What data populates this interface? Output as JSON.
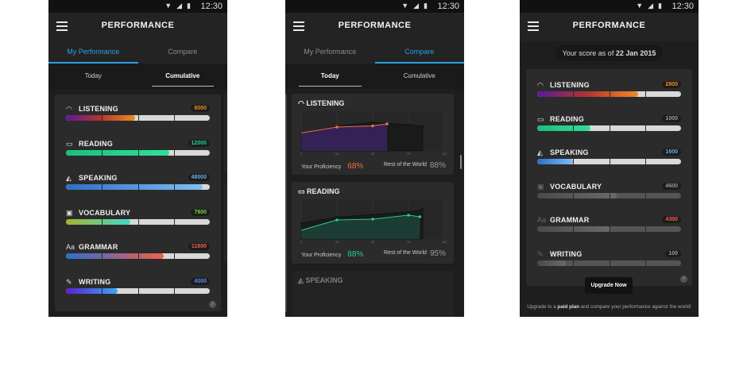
{
  "status_time": "12:30",
  "app_title": "PERFORMANCE",
  "tabs": [
    "My Performance",
    "Compare"
  ],
  "subtabs": [
    "Today",
    "Cumulative"
  ],
  "screen1": {
    "skills": [
      {
        "name": "LISTENING",
        "icon": "headphones-icon",
        "score": "8000",
        "score_color": "#f08a24",
        "progress": 0.48
      },
      {
        "name": "READING",
        "icon": "book-icon",
        "score": "12000",
        "score_color": "#1fd18a",
        "progress": 0.72
      },
      {
        "name": "SPEAKING",
        "icon": "megaphone-icon",
        "score": "48000",
        "score_color": "#5fb0f0",
        "progress": 0.95
      },
      {
        "name": "VOCABULARY",
        "icon": "flashcard-icon",
        "score": "7600",
        "score_color": "#7bd34a",
        "progress": 0.45
      },
      {
        "name": "GRAMMAR",
        "icon": "grammar-icon",
        "score": "11800",
        "score_color": "#f0604a",
        "progress": 0.68
      },
      {
        "name": "WRITING",
        "icon": "pen-icon",
        "score": "4000",
        "score_color": "#5a8cf0",
        "progress": 0.36
      }
    ]
  },
  "screen2": {
    "charts": [
      {
        "title": "LISTENING",
        "icon": "headphones-icon",
        "your_label": "Your Proficiency",
        "your_pct": "68%",
        "your_color": "#f07040",
        "rest_label": "Rest of the World",
        "rest_pct": "88%"
      },
      {
        "title": "READING",
        "icon": "book-icon",
        "your_label": "Your Proficiency",
        "your_pct": "88%",
        "your_color": "#1fd18a",
        "rest_label": "Rest of the World",
        "rest_pct": "95%"
      },
      {
        "title": "SPEAKING",
        "icon": "megaphone-icon"
      }
    ],
    "chart_data": [
      {
        "type": "area",
        "title": "LISTENING",
        "x": [
          0,
          25,
          50,
          75,
          100
        ],
        "x_tick_labels": [
          "0",
          "25",
          "50",
          "75",
          "100"
        ],
        "series": [
          {
            "name": "Your Proficiency",
            "x": [
              0,
              25,
              50,
              60
            ],
            "values": [
              0.45,
              0.6,
              0.63,
              0.68
            ]
          },
          {
            "name": "Rest of the World",
            "x": [
              0,
              25,
              50,
              75,
              85
            ],
            "values": [
              0.45,
              0.62,
              0.72,
              0.66,
              0.62
            ]
          }
        ]
      },
      {
        "type": "area",
        "title": "READING",
        "x": [
          0,
          25,
          50,
          75,
          100
        ],
        "x_tick_labels": [
          "0",
          "25",
          "50",
          "75",
          "100"
        ],
        "series": [
          {
            "name": "Your Proficiency",
            "x": [
              0,
              25,
              50,
              75,
              83
            ],
            "values": [
              0.22,
              0.48,
              0.5,
              0.6,
              0.56
            ]
          },
          {
            "name": "Rest of the World",
            "x": [
              0,
              25,
              50,
              75,
              85
            ],
            "values": [
              0.4,
              0.55,
              0.62,
              0.68,
              0.75
            ]
          }
        ]
      }
    ]
  },
  "screen3": {
    "score_prefix": "Your score as of ",
    "score_date": "22 Jan 2015",
    "skills": [
      {
        "name": "LISTENING",
        "icon": "headphones-icon",
        "score": "2800",
        "score_color": "#f08a24",
        "progress": 0.7,
        "active": true
      },
      {
        "name": "READING",
        "icon": "book-icon",
        "score": "1000",
        "score_color": "#9a9a9a",
        "progress": 0.37,
        "active": true
      },
      {
        "name": "SPEAKING",
        "icon": "megaphone-icon",
        "score": "1600",
        "score_color": "#5fb0f0",
        "progress": 0.25,
        "active": true
      },
      {
        "name": "VOCABULARY",
        "icon": "flashcard-icon",
        "score": "4600",
        "score_color": "#9a9a9a",
        "progress": 0.55,
        "active": false
      },
      {
        "name": "GRAMMAR",
        "icon": "grammar-icon",
        "score": "4300",
        "score_color": "#f0604a",
        "progress": 0.5,
        "active": false
      },
      {
        "name": "WRITING",
        "icon": "pen-icon",
        "score": "100",
        "score_color": "#9a9a9a",
        "progress": 0.2,
        "active": false
      }
    ],
    "upgrade_button": "Upgrade Now",
    "footnote_pre": "Upgrade to a ",
    "footnote_bold": "paid plan",
    "footnote_post": " and compare your performance against the world!"
  }
}
